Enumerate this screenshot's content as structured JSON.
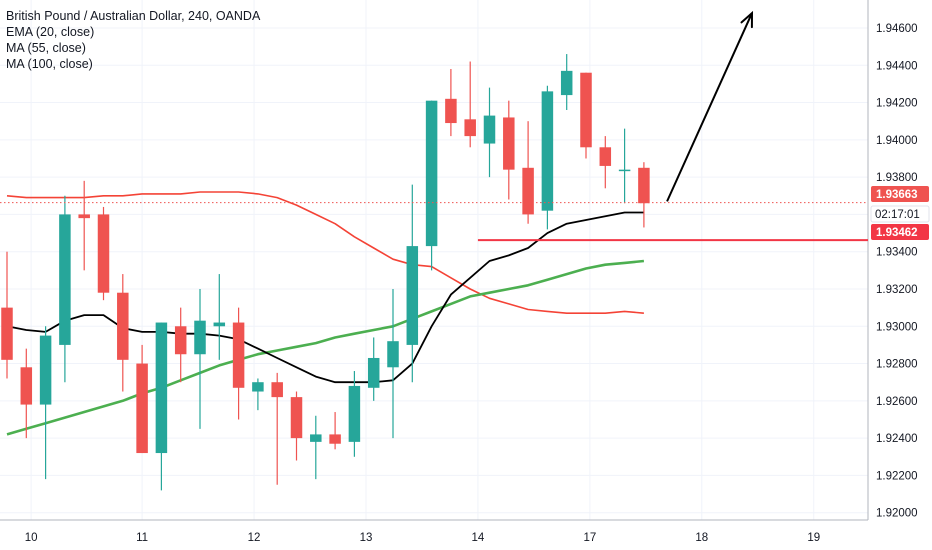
{
  "legend": {
    "title": "British Pound / Australian Dollar, 240, OANDA",
    "ema": "EMA (20, close)",
    "ma55": "MA (55, close)",
    "ma100": "MA (100, close)"
  },
  "price_badges": {
    "last": {
      "text": "1.93663",
      "color": "#ef5350"
    },
    "countdown": {
      "text": "02:17:01"
    },
    "level": {
      "text": "1.93462",
      "color": "#f23645"
    }
  },
  "colors": {
    "up": "#26a69a",
    "down": "#ef5350",
    "ema": "#000000",
    "ma55": "#4caf50",
    "ma100": "#f44336",
    "level_line": "#f23645",
    "grid": "#f0f3fa",
    "axis_line": "#b2b5be",
    "arrow": "#000000"
  },
  "chart_data": {
    "type": "candlestick",
    "title": "British Pound / Australian Dollar, 240, OANDA",
    "timeframe": "240",
    "x_tick_labels": [
      "10",
      "11",
      "12",
      "13",
      "14",
      "17",
      "18",
      "19"
    ],
    "y_tick_labels": [
      "1.94600",
      "1.94400",
      "1.94200",
      "1.94000",
      "1.93800",
      "1.93600",
      "1.93400",
      "1.93200",
      "1.93000",
      "1.92800",
      "1.92600",
      "1.92400",
      "1.92200",
      "1.92000"
    ],
    "ylim": [
      1.918,
      1.9475
    ],
    "candles": [
      {
        "o": 1.931,
        "h": 1.934,
        "l": 1.9272,
        "c": 1.9282
      },
      {
        "o": 1.9278,
        "h": 1.9288,
        "l": 1.924,
        "c": 1.9258
      },
      {
        "o": 1.9258,
        "h": 1.93,
        "l": 1.9218,
        "c": 1.9295
      },
      {
        "o": 1.929,
        "h": 1.937,
        "l": 1.927,
        "c": 1.936
      },
      {
        "o": 1.936,
        "h": 1.9378,
        "l": 1.933,
        "c": 1.9358
      },
      {
        "o": 1.936,
        "h": 1.9364,
        "l": 1.9314,
        "c": 1.9318
      },
      {
        "o": 1.9318,
        "h": 1.9328,
        "l": 1.9265,
        "c": 1.9282
      },
      {
        "o": 1.928,
        "h": 1.929,
        "l": 1.9232,
        "c": 1.9232
      },
      {
        "o": 1.9232,
        "h": 1.9302,
        "l": 1.9212,
        "c": 1.9302
      },
      {
        "o": 1.93,
        "h": 1.931,
        "l": 1.927,
        "c": 1.9285
      },
      {
        "o": 1.9285,
        "h": 1.932,
        "l": 1.9245,
        "c": 1.9303
      },
      {
        "o": 1.93,
        "h": 1.9328,
        "l": 1.9282,
        "c": 1.9302
      },
      {
        "o": 1.9302,
        "h": 1.931,
        "l": 1.925,
        "c": 1.9267
      },
      {
        "o": 1.9265,
        "h": 1.9272,
        "l": 1.9255,
        "c": 1.927
      },
      {
        "o": 1.927,
        "h": 1.9275,
        "l": 1.9215,
        "c": 1.9262
      },
      {
        "o": 1.9262,
        "h": 1.9265,
        "l": 1.9228,
        "c": 1.924
      },
      {
        "o": 1.9238,
        "h": 1.9252,
        "l": 1.9218,
        "c": 1.9242
      },
      {
        "o": 1.9242,
        "h": 1.9254,
        "l": 1.9234,
        "c": 1.9237
      },
      {
        "o": 1.9238,
        "h": 1.9276,
        "l": 1.923,
        "c": 1.9268
      },
      {
        "o": 1.9267,
        "h": 1.9294,
        "l": 1.926,
        "c": 1.9283
      },
      {
        "o": 1.9278,
        "h": 1.932,
        "l": 1.924,
        "c": 1.9292
      },
      {
        "o": 1.929,
        "h": 1.9376,
        "l": 1.927,
        "c": 1.9343
      },
      {
        "o": 1.9343,
        "h": 1.942,
        "l": 1.933,
        "c": 1.9421
      },
      {
        "o": 1.9422,
        "h": 1.9438,
        "l": 1.9402,
        "c": 1.9409
      },
      {
        "o": 1.9411,
        "h": 1.9442,
        "l": 1.9396,
        "c": 1.9402
      },
      {
        "o": 1.9398,
        "h": 1.9428,
        "l": 1.938,
        "c": 1.9413
      },
      {
        "o": 1.9412,
        "h": 1.9421,
        "l": 1.9368,
        "c": 1.9384
      },
      {
        "o": 1.9385,
        "h": 1.941,
        "l": 1.9355,
        "c": 1.936
      },
      {
        "o": 1.9362,
        "h": 1.9429,
        "l": 1.9352,
        "c": 1.9426
      },
      {
        "o": 1.9424,
        "h": 1.9446,
        "l": 1.9416,
        "c": 1.9437
      },
      {
        "o": 1.9436,
        "h": 1.9434,
        "l": 1.939,
        "c": 1.9396
      },
      {
        "o": 1.9396,
        "h": 1.9402,
        "l": 1.9374,
        "c": 1.9386
      },
      {
        "o": 1.9384,
        "h": 1.9406,
        "l": 1.9366,
        "c": 1.9384
      },
      {
        "o": 1.9385,
        "h": 1.9388,
        "l": 1.9353,
        "c": 1.9366
      }
    ],
    "x_ticks": [
      {
        "label": "10",
        "candle": 1.25
      },
      {
        "label": "11",
        "candle": 7.0
      },
      {
        "label": "12",
        "candle": 12.8
      },
      {
        "label": "13",
        "candle": 18.6
      },
      {
        "label": "14",
        "candle": 24.4
      },
      {
        "label": "17",
        "candle": 30.2
      },
      {
        "label": "18",
        "candle": 36.0
      },
      {
        "label": "19",
        "candle": 41.8
      }
    ],
    "series": [
      {
        "key": "ema",
        "values": [
          1.93,
          1.9298,
          1.9297,
          1.9303,
          1.9306,
          1.9306,
          1.9299,
          1.9297,
          1.9297,
          1.9296,
          1.9296,
          1.9295,
          1.9293,
          1.9288,
          1.9283,
          1.9278,
          1.9273,
          1.927,
          1.927,
          1.927,
          1.9271,
          1.928,
          1.93,
          1.9317,
          1.9326,
          1.9335,
          1.9338,
          1.9342,
          1.935,
          1.9355,
          1.9357,
          1.9359,
          1.9361,
          1.9361
        ]
      },
      {
        "key": "ma55",
        "values": [
          1.9242,
          1.9245,
          1.9248,
          1.9251,
          1.9254,
          1.9257,
          1.926,
          1.9264,
          1.9267,
          1.9271,
          1.9275,
          1.9279,
          1.9282,
          1.9285,
          1.9287,
          1.9289,
          1.9291,
          1.9294,
          1.9296,
          1.9298,
          1.93,
          1.9304,
          1.9308,
          1.9312,
          1.9316,
          1.9318,
          1.932,
          1.9322,
          1.9325,
          1.9328,
          1.9331,
          1.9333,
          1.9334,
          1.9335
        ]
      },
      {
        "key": "ma100",
        "values": [
          1.937,
          1.9369,
          1.9369,
          1.9369,
          1.9369,
          1.937,
          1.937,
          1.9371,
          1.9371,
          1.9371,
          1.9372,
          1.9372,
          1.9372,
          1.9371,
          1.9369,
          1.9365,
          1.936,
          1.9355,
          1.9348,
          1.9342,
          1.9336,
          1.9333,
          1.9332,
          1.9326,
          1.932,
          1.9315,
          1.9312,
          1.9309,
          1.9308,
          1.9307,
          1.9307,
          1.9307,
          1.9308,
          1.9307
        ]
      }
    ],
    "last_price": 1.93663,
    "horizontal_level": {
      "value": 1.93462,
      "from_candle": 24.4
    },
    "arrow": {
      "from": {
        "candle": 34.2,
        "value": 1.9367
      },
      "to": {
        "candle": 38.6,
        "value": 1.9468
      }
    }
  }
}
